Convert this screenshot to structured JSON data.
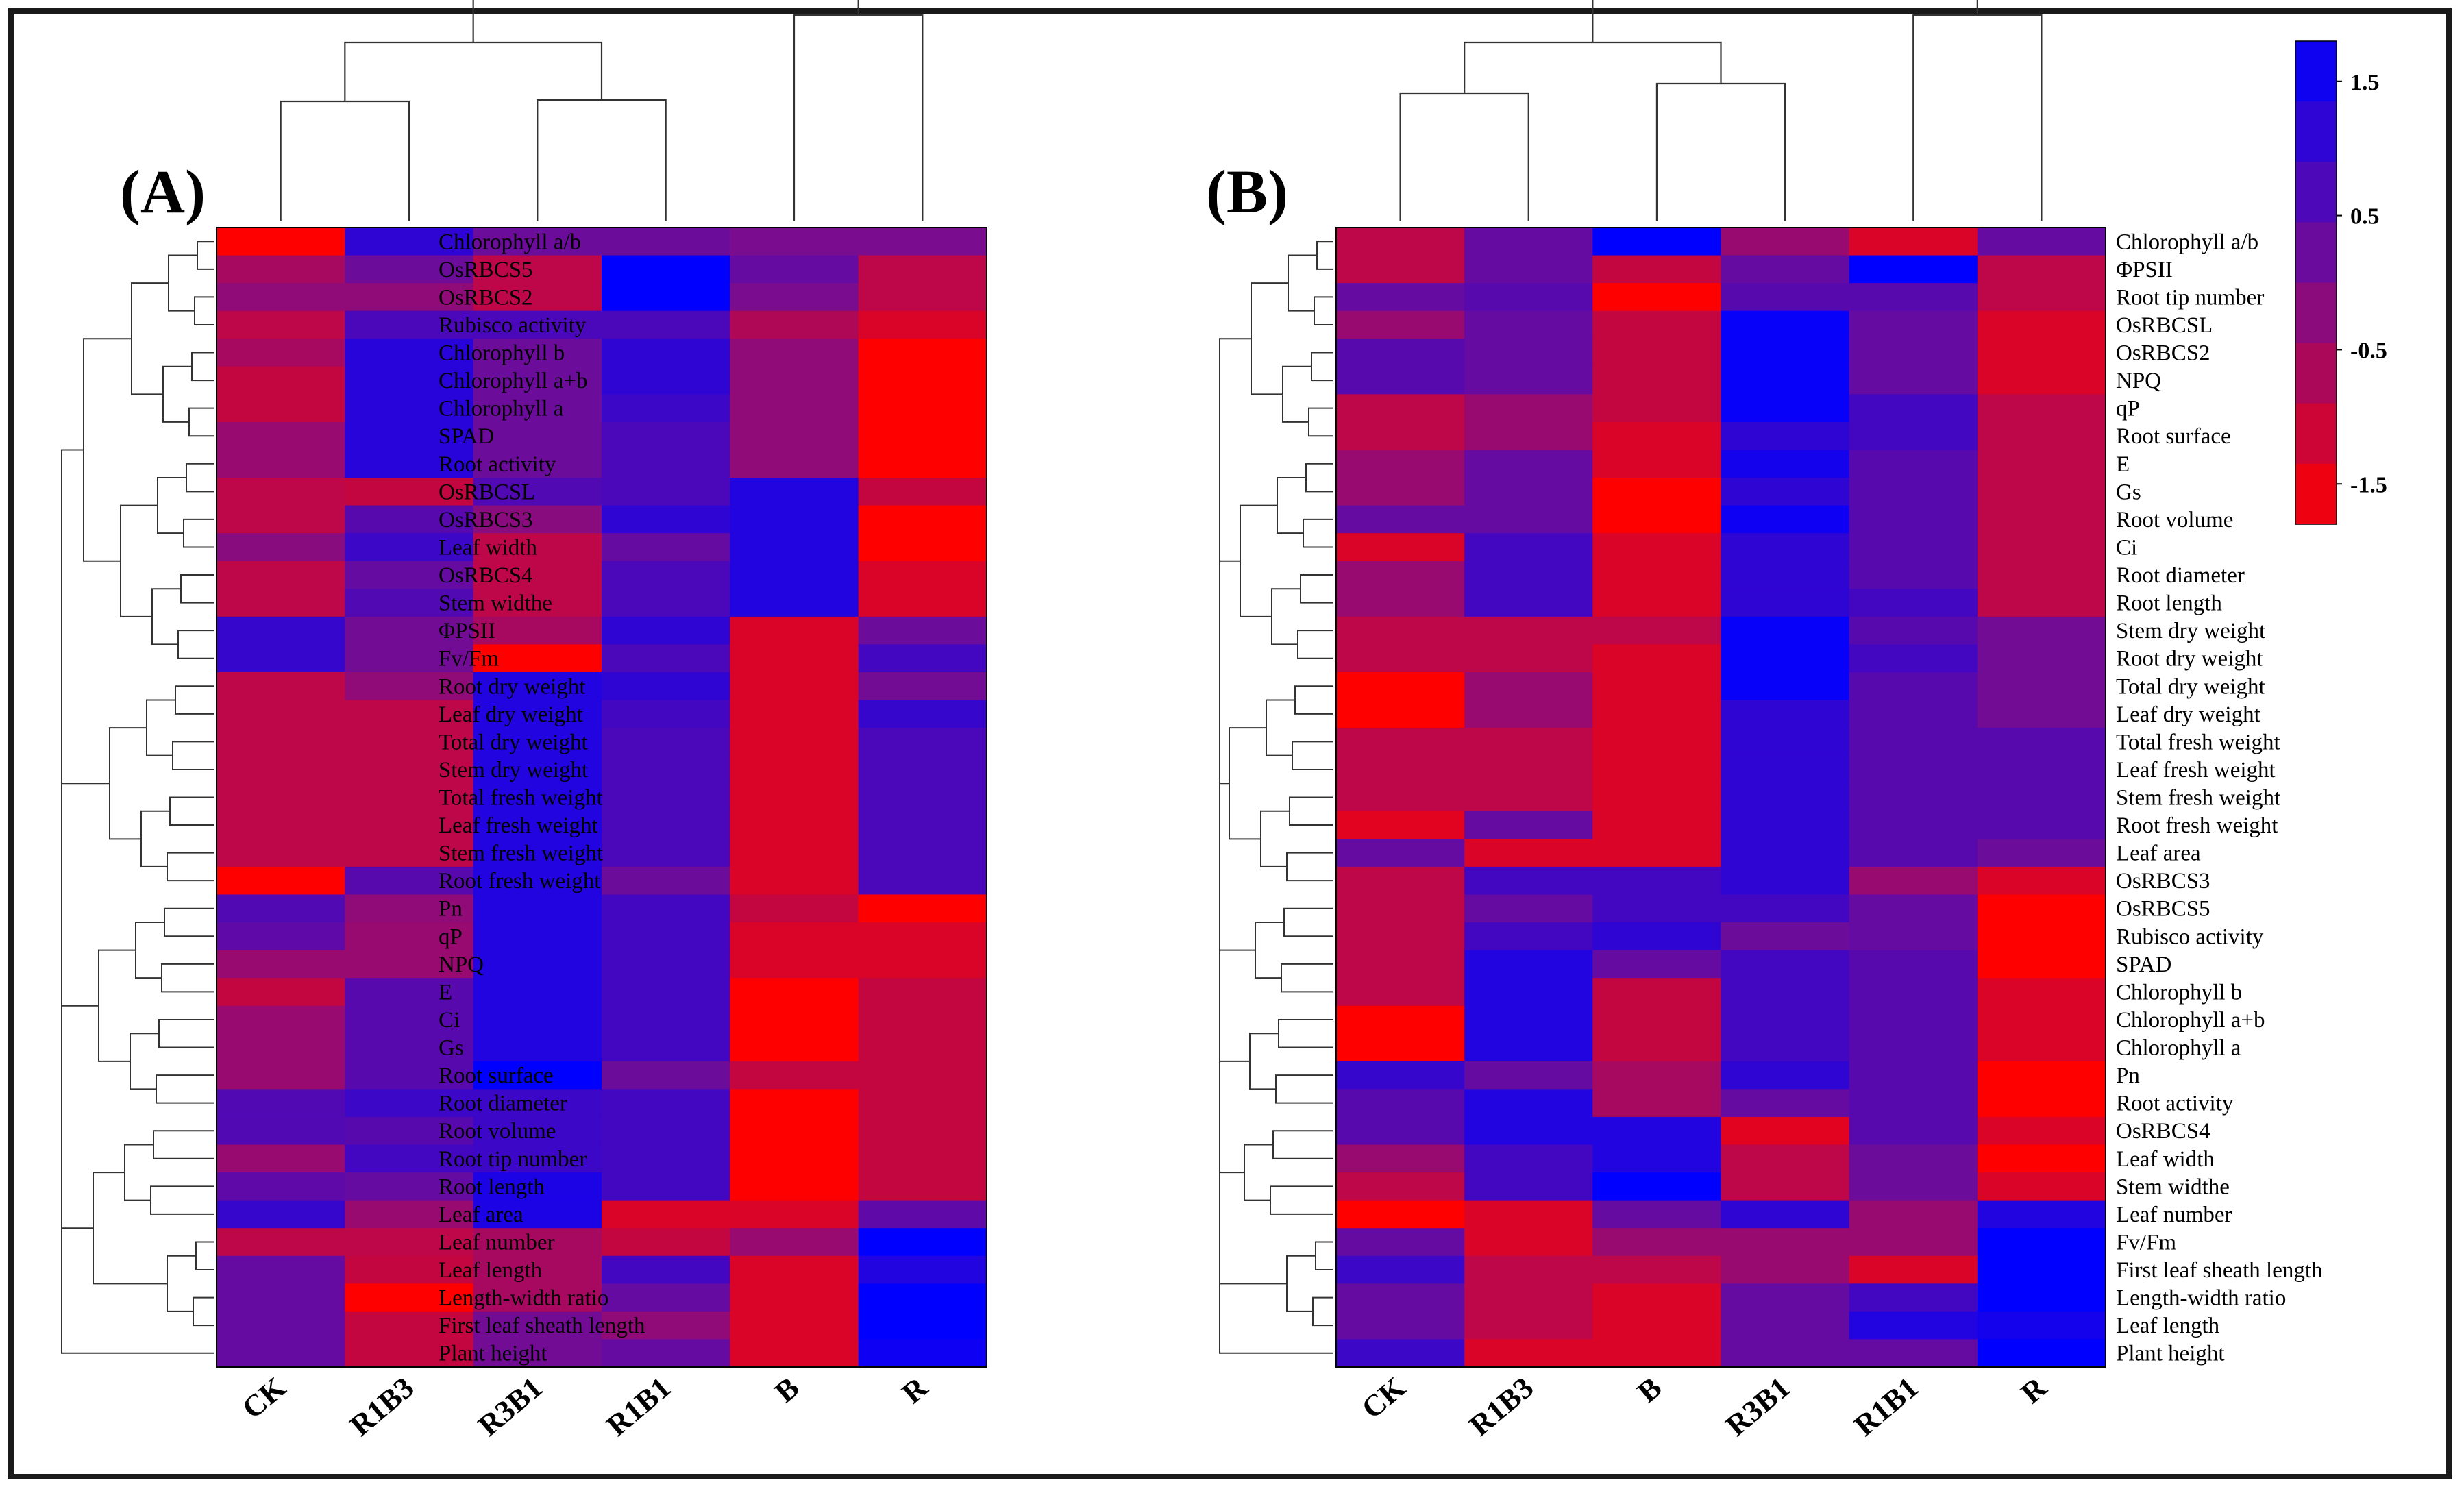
{
  "colors": {
    "low": "#ff0000",
    "mid": "#7a0d8f",
    "high": "#0000ff",
    "tree": "#333333"
  },
  "legend": {
    "ticks": [
      1.5,
      0.5,
      -0.5,
      -1.5
    ],
    "min": -1.8,
    "max": 1.8
  },
  "chart_data": [
    {
      "type": "heatmap",
      "title": "(A)",
      "columns": [
        "CK",
        "R1B3",
        "R3B1",
        "R1B1",
        "B",
        "R"
      ],
      "rows": [
        "Chlorophyll a/b",
        "OsRBCS5",
        "OsRBCS2",
        "Rubisco activity",
        "Chlorophyll b",
        "Chlorophyll a+b",
        "Chlorophyll a",
        "SPAD",
        "Root activity",
        "OsRBCSL",
        "OsRBCS3",
        "Leaf width",
        "OsRBCS4",
        "Stem widthe",
        "ΦPSII",
        "Fv/Fm",
        "Root dry weight",
        "Leaf dry weight",
        "Total dry weight",
        "Stem dry weight",
        "Total fresh weight",
        "Leaf fresh weight",
        "Stem fresh weight",
        "Root fresh weight",
        "Pn",
        "qP",
        "NPQ",
        "E",
        "Ci",
        "Gs",
        "Root surface",
        "Root diameter",
        "Root volume",
        "Root tip number",
        "Root length",
        "Leaf area",
        "Leaf number",
        "Leaf length",
        "Length-width ratio",
        "First leaf sheath length",
        "Plant height"
      ],
      "values": [
        [
          -1.8,
          1.1,
          0.2,
          0.2,
          0.0,
          0.0
        ],
        [
          -0.6,
          0.2,
          -0.9,
          1.8,
          0.3,
          -0.9
        ],
        [
          -0.3,
          -0.3,
          -0.9,
          1.8,
          0.0,
          -0.9
        ],
        [
          -0.9,
          0.7,
          0.7,
          0.7,
          -0.7,
          -1.3
        ],
        [
          -0.6,
          1.2,
          0.2,
          1.1,
          -0.3,
          -1.8
        ],
        [
          -1.0,
          1.2,
          0.2,
          1.1,
          -0.3,
          -1.8
        ],
        [
          -1.0,
          1.2,
          0.2,
          0.9,
          -0.3,
          -1.8
        ],
        [
          -0.4,
          1.2,
          0.2,
          0.7,
          -0.3,
          -1.8
        ],
        [
          -0.4,
          1.2,
          0.2,
          0.7,
          -0.3,
          -1.8
        ],
        [
          -0.9,
          -1.0,
          0.6,
          0.7,
          1.3,
          -1.0
        ],
        [
          -0.9,
          0.5,
          -0.2,
          1.1,
          1.3,
          -1.8
        ],
        [
          -0.2,
          0.9,
          -0.9,
          0.3,
          1.3,
          -1.8
        ],
        [
          -0.9,
          0.3,
          -0.9,
          0.7,
          1.3,
          -1.3
        ],
        [
          -0.9,
          0.6,
          -0.9,
          0.7,
          1.3,
          -1.3
        ],
        [
          1.0,
          0.1,
          -0.6,
          1.1,
          -1.3,
          0.2
        ],
        [
          1.0,
          0.1,
          -1.8,
          0.7,
          -1.3,
          0.8
        ],
        [
          -0.9,
          -0.3,
          1.3,
          1.1,
          -1.3,
          0.1
        ],
        [
          -0.9,
          -0.9,
          1.3,
          0.8,
          -1.3,
          1.0
        ],
        [
          -0.9,
          -0.9,
          1.3,
          0.7,
          -1.3,
          0.7
        ],
        [
          -0.9,
          -0.9,
          1.3,
          0.7,
          -1.3,
          0.7
        ],
        [
          -0.9,
          -0.9,
          1.3,
          0.7,
          -1.3,
          0.7
        ],
        [
          -0.9,
          -0.9,
          1.3,
          0.7,
          -1.3,
          0.7
        ],
        [
          -0.9,
          -0.9,
          1.3,
          0.7,
          -1.3,
          0.7
        ],
        [
          -1.8,
          0.5,
          1.3,
          0.2,
          -1.3,
          0.7
        ],
        [
          0.6,
          -0.3,
          1.3,
          0.8,
          -1.0,
          -1.8
        ],
        [
          0.4,
          -0.4,
          1.3,
          0.8,
          -1.3,
          -1.3
        ],
        [
          -0.4,
          -0.4,
          1.3,
          0.8,
          -1.3,
          -1.3
        ],
        [
          -1.0,
          0.5,
          1.3,
          0.8,
          -1.8,
          -1.0
        ],
        [
          -0.4,
          0.5,
          1.3,
          0.8,
          -1.8,
          -1.0
        ],
        [
          -0.4,
          0.5,
          1.3,
          0.8,
          -1.8,
          -1.0
        ],
        [
          -0.4,
          0.5,
          1.8,
          0.2,
          -1.0,
          -1.0
        ],
        [
          0.6,
          0.9,
          0.9,
          0.8,
          -1.8,
          -1.0
        ],
        [
          0.6,
          0.5,
          0.9,
          0.8,
          -1.8,
          -1.0
        ],
        [
          -0.4,
          0.8,
          0.9,
          0.8,
          -1.8,
          -1.0
        ],
        [
          0.4,
          0.3,
          1.4,
          0.8,
          -1.8,
          -1.0
        ],
        [
          1.0,
          -0.4,
          1.4,
          -1.3,
          -1.3,
          0.4
        ],
        [
          -0.9,
          -0.9,
          -0.6,
          -1.0,
          -0.4,
          1.8
        ],
        [
          0.3,
          -1.0,
          -0.6,
          0.8,
          -1.3,
          1.3
        ],
        [
          0.3,
          -1.8,
          -0.6,
          0.3,
          -1.3,
          1.8
        ],
        [
          0.3,
          -1.0,
          0.1,
          -0.3,
          -1.3,
          1.8
        ],
        [
          0.3,
          -1.0,
          0.1,
          0.3,
          -1.3,
          1.6
        ]
      ]
    },
    {
      "type": "heatmap",
      "title": "(B)",
      "columns": [
        "CK",
        "R1B3",
        "B",
        "R3B1",
        "R1B1",
        "R"
      ],
      "rows": [
        "Chlorophyll a/b",
        "ΦPSII",
        "Root tip number",
        "OsRBCSL",
        "OsRBCS2",
        "NPQ",
        "qP",
        "Root surface",
        "E",
        "Gs",
        "Root volume",
        "Ci",
        "Root diameter",
        "Root length",
        "Stem dry weight",
        "Root dry weight",
        "Total dry weight",
        "Leaf dry weight",
        "Total fresh weight",
        "Leaf fresh weight",
        "Stem fresh weight",
        "Root fresh weight",
        "Leaf area",
        "OsRBCS3",
        "OsRBCS5",
        "Rubisco activity",
        "SPAD",
        "Chlorophyll b",
        "Chlorophyll a+b",
        "Chlorophyll a",
        "Pn",
        "Root activity",
        "OsRBCS4",
        "Leaf width",
        "Stem widthe",
        "Leaf number",
        "Fv/Fm",
        "First leaf sheath length",
        "Length-width ratio",
        "Leaf length",
        "Plant height"
      ],
      "values": [
        [
          -0.9,
          0.3,
          1.8,
          -0.4,
          -1.3,
          0.3
        ],
        [
          -0.9,
          0.3,
          -1.0,
          0.3,
          1.8,
          -0.9
        ],
        [
          0.3,
          0.5,
          -1.8,
          0.5,
          0.5,
          -0.9
        ],
        [
          -0.4,
          0.3,
          -1.0,
          1.7,
          0.3,
          -1.3
        ],
        [
          0.5,
          0.3,
          -1.0,
          1.7,
          0.3,
          -1.3
        ],
        [
          0.5,
          0.3,
          -1.0,
          1.7,
          0.3,
          -1.3
        ],
        [
          -0.9,
          -0.4,
          -1.0,
          1.7,
          0.8,
          -0.9
        ],
        [
          -0.9,
          -0.4,
          -1.3,
          1.1,
          0.8,
          -0.9
        ],
        [
          -0.4,
          0.3,
          -1.3,
          1.5,
          0.5,
          -0.9
        ],
        [
          -0.4,
          0.3,
          -1.8,
          1.1,
          0.5,
          -0.9
        ],
        [
          0.3,
          0.3,
          -1.8,
          1.6,
          0.5,
          -0.9
        ],
        [
          -1.3,
          0.8,
          -1.3,
          1.1,
          0.5,
          -0.9
        ],
        [
          -0.4,
          0.8,
          -1.3,
          1.1,
          0.5,
          -0.9
        ],
        [
          -0.4,
          0.8,
          -1.3,
          1.1,
          0.8,
          -0.9
        ],
        [
          -0.9,
          -0.9,
          -0.9,
          1.7,
          0.5,
          0.1
        ],
        [
          -0.9,
          -0.9,
          -1.3,
          1.7,
          0.8,
          0.1
        ],
        [
          -1.8,
          -0.4,
          -1.3,
          1.7,
          0.5,
          0.1
        ],
        [
          -1.8,
          -0.4,
          -1.3,
          1.1,
          0.5,
          0.1
        ],
        [
          -0.9,
          -0.9,
          -1.3,
          1.1,
          0.5,
          0.5
        ],
        [
          -0.9,
          -0.9,
          -1.3,
          1.1,
          0.5,
          0.5
        ],
        [
          -0.9,
          -0.9,
          -1.3,
          1.1,
          0.5,
          0.5
        ],
        [
          -1.4,
          0.3,
          -1.3,
          1.1,
          0.5,
          0.5
        ],
        [
          0.3,
          -1.3,
          -1.3,
          1.1,
          0.5,
          0.2
        ],
        [
          -0.9,
          0.8,
          0.8,
          1.1,
          -0.4,
          -1.3
        ],
        [
          -0.9,
          0.3,
          0.8,
          0.8,
          0.3,
          -1.8
        ],
        [
          -0.9,
          0.8,
          1.1,
          0.2,
          0.3,
          -1.8
        ],
        [
          -0.9,
          1.3,
          0.3,
          0.8,
          0.5,
          -1.8
        ],
        [
          -0.9,
          1.3,
          -1.0,
          0.8,
          0.5,
          -1.3
        ],
        [
          -1.8,
          1.3,
          -1.0,
          0.8,
          0.5,
          -1.3
        ],
        [
          -1.8,
          1.3,
          -1.0,
          0.8,
          0.5,
          -1.3
        ],
        [
          1.0,
          0.3,
          -0.6,
          1.1,
          0.5,
          -1.8
        ],
        [
          0.5,
          1.3,
          -0.6,
          0.3,
          0.5,
          -1.8
        ],
        [
          0.5,
          1.3,
          1.3,
          -1.4,
          0.5,
          -1.3
        ],
        [
          -0.4,
          0.8,
          1.3,
          -0.9,
          0.2,
          -1.8
        ],
        [
          -0.9,
          0.8,
          1.8,
          -0.9,
          0.2,
          -1.3
        ],
        [
          -1.8,
          -1.3,
          0.3,
          1.1,
          -0.4,
          1.3
        ],
        [
          0.3,
          -1.3,
          -0.4,
          -0.4,
          -0.4,
          1.8
        ],
        [
          0.9,
          -0.9,
          -0.9,
          -0.4,
          -1.3,
          1.8
        ],
        [
          0.3,
          -0.9,
          -1.3,
          0.3,
          0.8,
          1.8
        ],
        [
          0.3,
          -0.9,
          -1.3,
          0.3,
          1.3,
          1.5
        ],
        [
          0.9,
          -1.3,
          -1.3,
          0.3,
          0.3,
          1.8
        ]
      ]
    }
  ]
}
